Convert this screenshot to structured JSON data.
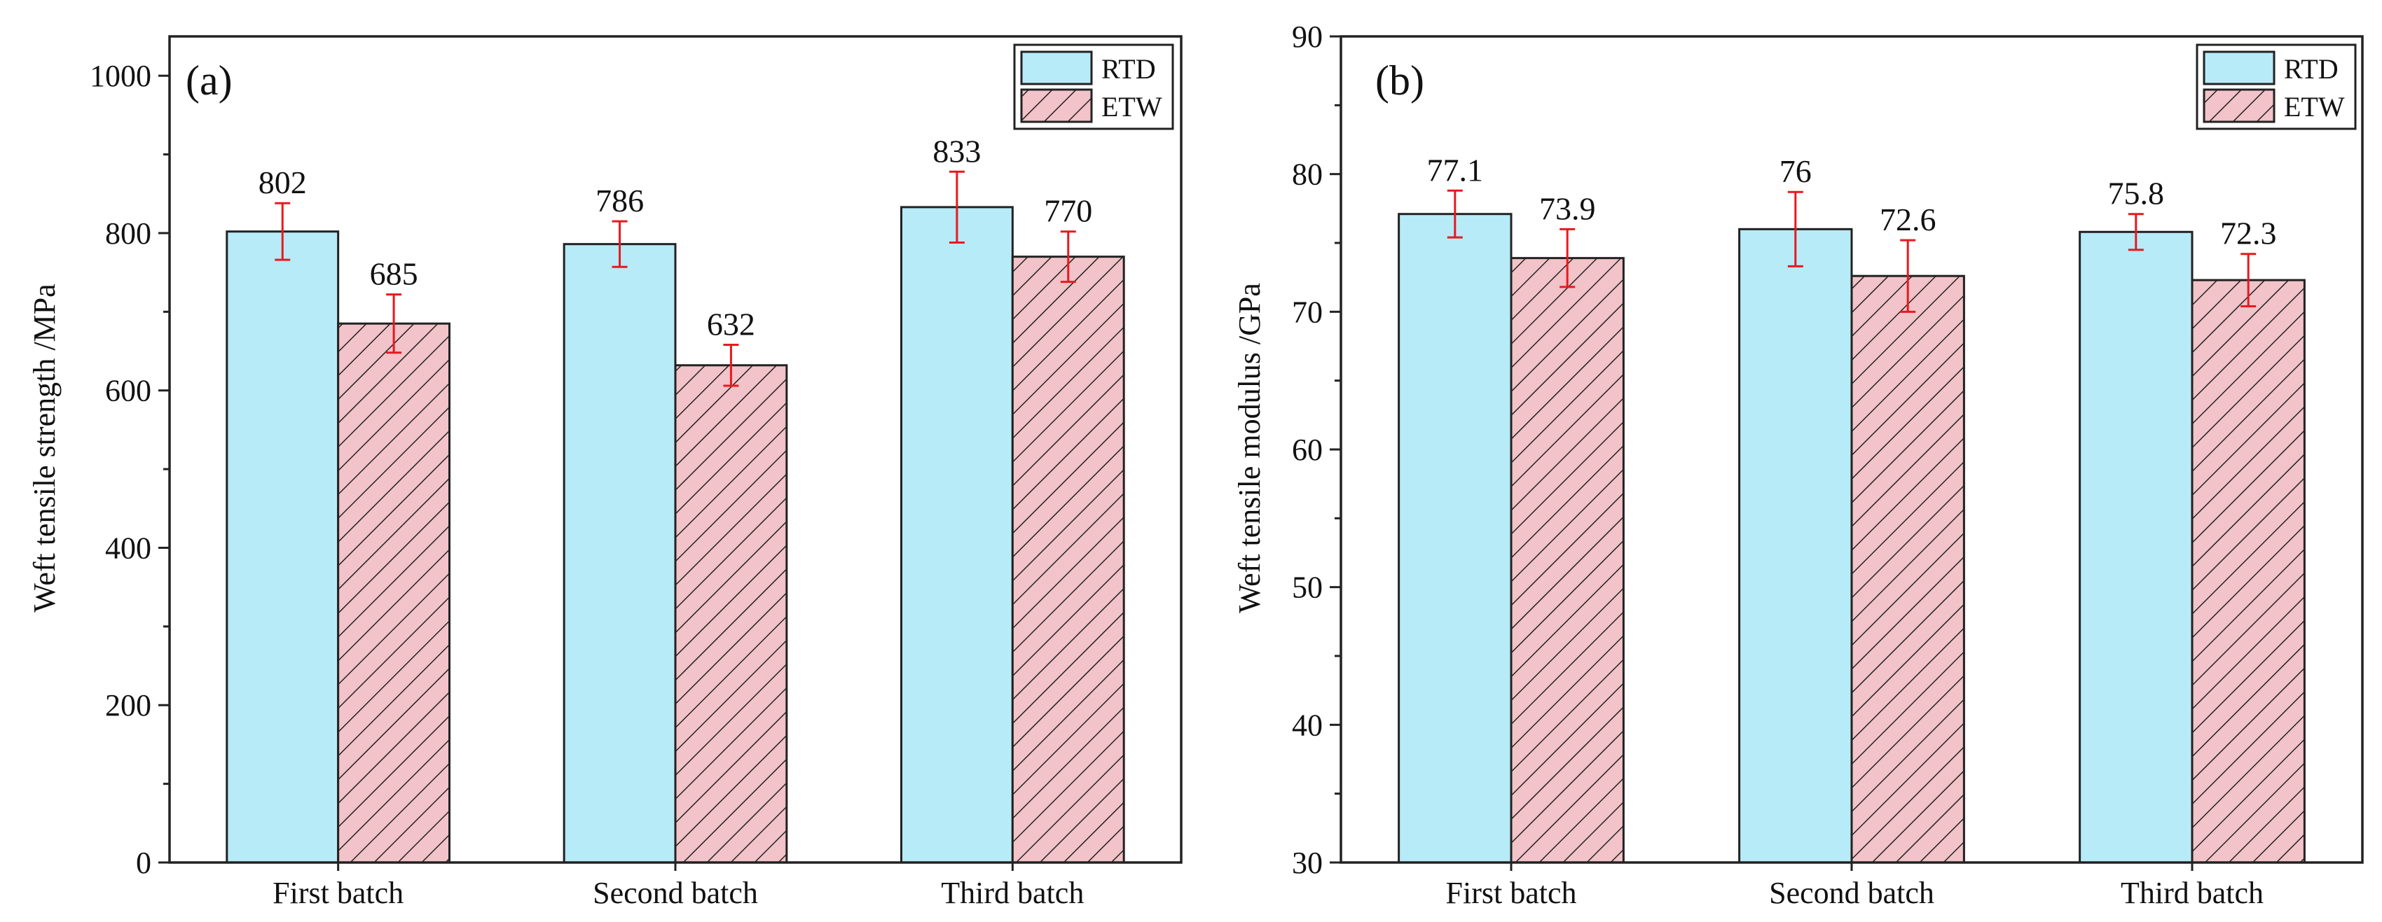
{
  "chart_data": [
    {
      "type": "bar",
      "panel_label": "(a)",
      "categories": [
        "First batch",
        "Second batch",
        "Third batch"
      ],
      "series": [
        {
          "name": "RTD",
          "values": [
            802,
            786,
            833
          ],
          "errors": [
            36,
            29,
            45
          ],
          "value_labels": [
            "802",
            "786",
            "833"
          ],
          "fill": "#b7ebf8",
          "pattern": "solid"
        },
        {
          "name": "ETW",
          "values": [
            685,
            632,
            770
          ],
          "errors": [
            37,
            26,
            32
          ],
          "value_labels": [
            "685",
            "632",
            "770"
          ],
          "fill": "#f2c3c8",
          "pattern": "hatch"
        }
      ],
      "title": "",
      "xlabel": "",
      "ylabel": "Weft tensile strength /MPa",
      "ylim": [
        0,
        1050
      ],
      "yticks": [
        0,
        200,
        400,
        600,
        800,
        1000
      ],
      "ytick_labels": [
        "0",
        "200",
        "400",
        "600",
        "800",
        "1000"
      ],
      "minor_ytick_step": 100,
      "legend": "top-right",
      "grid": false,
      "error_bar_color": "#e8191f"
    },
    {
      "type": "bar",
      "panel_label": "(b)",
      "categories": [
        "First batch",
        "Second batch",
        "Third batch"
      ],
      "series": [
        {
          "name": "RTD",
          "values": [
            77.1,
            76,
            75.8
          ],
          "errors": [
            1.7,
            2.7,
            1.3
          ],
          "value_labels": [
            "77.1",
            "76",
            "75.8"
          ],
          "fill": "#b7ebf8",
          "pattern": "solid"
        },
        {
          "name": "ETW",
          "values": [
            73.9,
            72.6,
            72.3
          ],
          "errors": [
            2.1,
            2.6,
            1.9
          ],
          "value_labels": [
            "73.9",
            "72.6",
            "72.3"
          ],
          "fill": "#f2c3c8",
          "pattern": "hatch"
        }
      ],
      "title": "",
      "xlabel": "",
      "ylabel": "Weft tensile modulus /GPa",
      "ylim": [
        30,
        90
      ],
      "yticks": [
        30,
        40,
        50,
        60,
        70,
        80,
        90
      ],
      "ytick_labels": [
        "30",
        "40",
        "50",
        "60",
        "70",
        "80",
        "90"
      ],
      "minor_ytick_step": 5,
      "legend": "top-right",
      "grid": false,
      "error_bar_color": "#e8191f"
    }
  ]
}
